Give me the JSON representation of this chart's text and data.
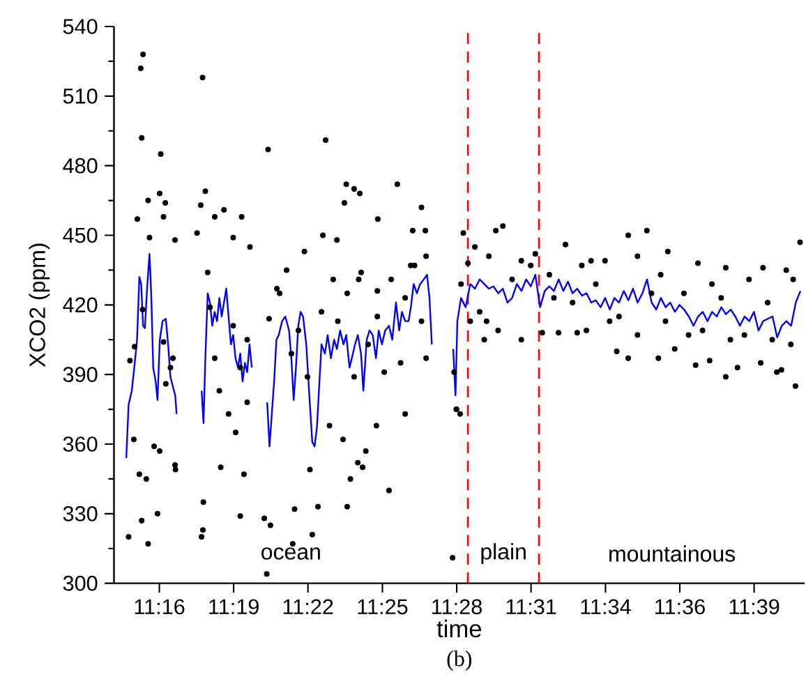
{
  "chart_data": {
    "type": "scatter",
    "xlabel": "time",
    "ylabel": "XCO2 (ppm)",
    "xlim": [
      11.2397,
      11.6887
    ],
    "ylim": [
      300,
      540
    ],
    "xticks": [
      {
        "value": 11.2692,
        "label": "11:16"
      },
      {
        "value": 11.3175,
        "label": "11:19"
      },
      {
        "value": 11.3658,
        "label": "11:22"
      },
      {
        "value": 11.4142,
        "label": "11:25"
      },
      {
        "value": 11.4625,
        "label": "11:28"
      },
      {
        "value": 11.5108,
        "label": "11:31"
      },
      {
        "value": 11.5592,
        "label": "11:34"
      },
      {
        "value": 11.6075,
        "label": "11:36"
      },
      {
        "value": 11.6558,
        "label": "11:39"
      }
    ],
    "yticks": [
      300,
      330,
      360,
      390,
      420,
      450,
      480,
      510,
      540
    ],
    "series": [
      {
        "color": "#000000",
        "x": [
          11.2586,
          11.2571,
          11.2577,
          11.2701,
          11.2973,
          11.3399,
          11.3773,
          11.4239,
          11.3907,
          11.3958,
          11.3995,
          11.3895,
          11.4112,
          11.4396,
          11.4339,
          11.4421,
          11.2619,
          11.2694,
          11.2731,
          11.2719,
          11.2549,
          11.2794,
          11.2628,
          11.2991,
          11.2961,
          11.3052,
          11.3227,
          11.2937,
          11.3281,
          11.3172,
          11.3112,
          11.3755,
          11.3846,
          11.3635,
          11.3519,
          11.3456,
          11.3405,
          11.4109,
          11.4326,
          11.4426,
          11.3988,
          11.2492,
          11.2577,
          11.2619,
          11.268,
          11.2562,
          11.2607,
          11.2526,
          11.2658,
          11.2694,
          11.2794,
          11.2797,
          11.2966,
          11.2975,
          11.2978,
          11.3091,
          11.3218,
          11.3242,
          11.3188,
          11.3263,
          11.3374,
          11.3414,
          11.339,
          11.3571,
          11.3559,
          11.3686,
          11.3723,
          11.3671,
          11.3798,
          11.3886,
          11.3913,
          11.3934,
          11.3982,
          11.4013,
          11.4034,
          11.4185,
          11.4103,
          11.429,
          11.4598,
          11.4623,
          11.4647,
          11.2501,
          11.2531,
          11.2583,
          11.2719,
          11.2734,
          11.2764,
          11.278,
          11.3006,
          11.3021,
          11.3052,
          11.3082,
          11.3142,
          11.3172,
          11.3218,
          11.3263,
          11.3474,
          11.355,
          11.3596,
          11.3655,
          11.3746,
          11.3822,
          11.3852,
          11.3913,
          11.3958,
          11.4004,
          11.4049,
          11.4109,
          11.4154,
          11.4199,
          11.426,
          11.429,
          11.4351,
          11.4396,
          11.4426,
          11.4623,
          11.4608,
          11.4668,
          11.4925,
          11.4879,
          11.5861,
          11.574,
          11.5332,
          11.5997,
          11.4743,
          11.4834,
          11.5045,
          11.5136,
          11.5438,
          11.5589,
          11.58,
          11.6193,
          11.6374,
          11.6616,
          11.6767,
          11.6857,
          11.4713,
          11.4804,
          11.4894,
          11.5045,
          11.5181,
          11.5287,
          11.5408,
          11.5468,
          11.5665,
          11.574,
          11.5936,
          11.6042,
          11.6178,
          11.6269,
          11.6374,
          11.645,
          11.6601,
          11.6706,
          11.6827,
          11.6736,
          11.4985,
          11.5227,
          11.5378,
          11.5529,
          11.568,
          11.5891,
          11.5982,
          11.6102,
          11.6223,
          11.6344,
          11.6495,
          11.6646,
          11.6797,
          11.4774,
          11.5106,
          11.5257,
          11.5498,
          11.5619,
          11.58,
          11.5951,
          11.6132,
          11.6284,
          11.6404,
          11.6525,
          11.6676,
          11.6812,
          11.4653,
          11.4698,
          11.4819
        ],
        "values": [
          528,
          522,
          492,
          485,
          518,
          487,
          491,
          472,
          472,
          470,
          468,
          464,
          457,
          462,
          452,
          452,
          465,
          468,
          464,
          458,
          457,
          448,
          449,
          469,
          463,
          458,
          458,
          451,
          445,
          449,
          461,
          450,
          448,
          443,
          435,
          427,
          414,
          426,
          437,
          441,
          431,
          320,
          327,
          317,
          330,
          347,
          345,
          362,
          359,
          357,
          351,
          349,
          320,
          323,
          335,
          350,
          329,
          347,
          365,
          378,
          328,
          325,
          304,
          332,
          317,
          321,
          333,
          349,
          368,
          362,
          333,
          345,
          352,
          350,
          357,
          340,
          368,
          373,
          311,
          375,
          373,
          396,
          402,
          418,
          404,
          386,
          393,
          397,
          434,
          419,
          397,
          383,
          373,
          411,
          393,
          405,
          425,
          399,
          409,
          389,
          417,
          431,
          413,
          425,
          389,
          434,
          403,
          415,
          391,
          431,
          395,
          423,
          437,
          413,
          397,
          375,
          391,
          451,
          454,
          452,
          452,
          450,
          446,
          443,
          445,
          441,
          439,
          442,
          437,
          439,
          441,
          438,
          436,
          436,
          435,
          447,
          413,
          405,
          409,
          405,
          408,
          408,
          408,
          409,
          400,
          397,
          397,
          401,
          394,
          396,
          389,
          393,
          395,
          391,
          385,
          392,
          431,
          433,
          421,
          429,
          415,
          425,
          413,
          425,
          409,
          423,
          407,
          421,
          403,
          417,
          437,
          423,
          439,
          413,
          407,
          433,
          407,
          429,
          405,
          431,
          405,
          431,
          429,
          438,
          413
        ]
      },
      {
        "type": "line",
        "color": "#0000ff",
        "marker": "none",
        "x": [
          11.2477,
          11.2492,
          11.2513,
          11.2532,
          11.2547,
          11.2562,
          11.2574,
          11.2586,
          11.2598,
          11.2613,
          11.2628,
          11.264,
          11.2652,
          11.2668,
          11.268,
          11.2695,
          11.2713,
          11.2734,
          11.2749,
          11.2764,
          11.2779,
          11.2795,
          11.2804,
          11.287,
          11.2967,
          11.2979,
          11.2991,
          11.3006,
          11.3021,
          11.3036,
          11.3051,
          11.3067,
          11.3082,
          11.3097,
          11.3112,
          11.3127,
          11.3142,
          11.3157,
          11.3172,
          11.3187,
          11.3203,
          11.3218,
          11.3233,
          11.3248,
          11.3263,
          11.3278,
          11.3293,
          11.338,
          11.3393,
          11.3408,
          11.3423,
          11.3438,
          11.3453,
          11.3468,
          11.349,
          11.3511,
          11.3535,
          11.355,
          11.3565,
          11.358,
          11.3595,
          11.361,
          11.3626,
          11.3647,
          11.3665,
          11.3686,
          11.3701,
          11.3716,
          11.3731,
          11.3746,
          11.3768,
          11.3786,
          11.3807,
          11.3828,
          11.3846,
          11.3867,
          11.3889,
          11.3907,
          11.3928,
          11.3943,
          11.3964,
          11.3982,
          11.4003,
          11.4018,
          11.404,
          11.4058,
          11.4079,
          11.41,
          11.4118,
          11.4139,
          11.416,
          11.4185,
          11.4206,
          11.423,
          11.4251,
          11.4269,
          11.429,
          11.4312,
          11.4327,
          11.4345,
          11.4366,
          11.4387,
          11.4411,
          11.4432,
          11.4448,
          11.4463,
          11.453,
          11.4602,
          11.4617,
          11.4629,
          11.4653,
          11.4683,
          11.4713,
          11.4744,
          11.4774,
          11.4804,
          11.4834,
          11.4864,
          11.4895,
          11.4925,
          11.4955,
          11.4985,
          11.5016,
          11.5046,
          11.5076,
          11.5106,
          11.5136,
          11.5167,
          11.5197,
          11.5227,
          11.5257,
          11.5288,
          11.5318,
          11.5348,
          11.5378,
          11.5408,
          11.5439,
          11.5469,
          11.5499,
          11.5529,
          11.556,
          11.559,
          11.562,
          11.565,
          11.568,
          11.5711,
          11.5741,
          11.5771,
          11.5801,
          11.5832,
          11.5862,
          11.5892,
          11.5922,
          11.5952,
          11.5983,
          11.6013,
          11.6043,
          11.6073,
          11.6103,
          11.6134,
          11.6164,
          11.6194,
          11.6224,
          11.6255,
          11.6285,
          11.6315,
          11.6345,
          11.6375,
          11.6406,
          11.6436,
          11.6466,
          11.6496,
          11.6527,
          11.6557,
          11.6587,
          11.6617,
          11.6647,
          11.6678,
          11.6708,
          11.6738,
          11.6768,
          11.6799,
          11.6829,
          11.6859
        ],
        "values": [
          354,
          377,
          383,
          395,
          405,
          432,
          429,
          411,
          410,
          428,
          442,
          423,
          393,
          387,
          379,
          405,
          413,
          414,
          403,
          389,
          385,
          381,
          373,
          null,
          383,
          369,
          397,
          425,
          421,
          411,
          417,
          413,
          423,
          415,
          421,
          427,
          415,
          403,
          407,
          397,
          393,
          399,
          387,
          395,
          391,
          403,
          393,
          null,
          378,
          359,
          373,
          387,
          405,
          407,
          413,
          415,
          409,
          397,
          379,
          393,
          411,
          417,
          415,
          403,
          383,
          361,
          359,
          367,
          385,
          403,
          399,
          407,
          397,
          405,
          401,
          409,
          403,
          407,
          393,
          397,
          403,
          407,
          399,
          383,
          405,
          409,
          407,
          397,
          409,
          403,
          409,
          411,
          405,
          421,
          409,
          417,
          413,
          413,
          419,
          429,
          425,
          429,
          431,
          433,
          423,
          403,
          null,
          401,
          381,
          413,
          423,
          419,
          429,
          427,
          431,
          429,
          427,
          428,
          425,
          427,
          421,
          423,
          429,
          426,
          431,
          428,
          433,
          419,
          426,
          428,
          426,
          431,
          426,
          430,
          425,
          427,
          424,
          425,
          421,
          422,
          419,
          423,
          418,
          423,
          421,
          426,
          422,
          427,
          421,
          425,
          431,
          421,
          418,
          423,
          419,
          421,
          417,
          420,
          418,
          415,
          411,
          415,
          417,
          413,
          417,
          415,
          419,
          416,
          418,
          415,
          411,
          415,
          413,
          417,
          409,
          413,
          414,
          415,
          406,
          411,
          413,
          411,
          421,
          426
        ]
      }
    ],
    "ref_lines": [
      {
        "axis": "x",
        "value": 11.4698,
        "color": "#ff0000",
        "line_style": "dashed"
      },
      {
        "axis": "x",
        "value": 11.516,
        "color": "#ff0000",
        "line_style": "dashed"
      }
    ],
    "annotations": [
      "ocean",
      "plain",
      "mountainous",
      "(b)"
    ]
  }
}
